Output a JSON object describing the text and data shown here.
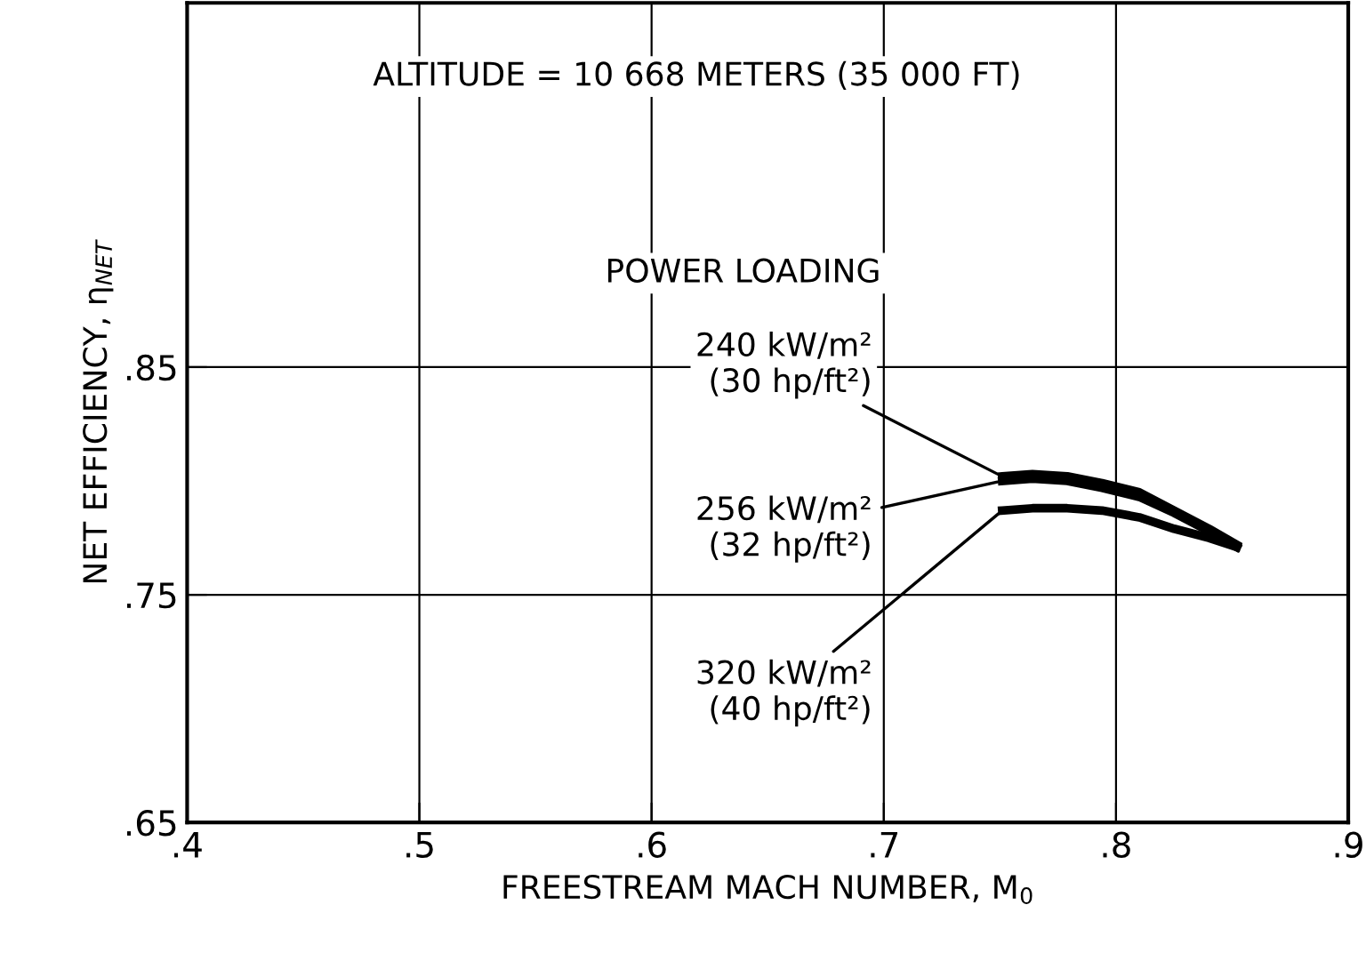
{
  "chart_data": {
    "type": "line",
    "xlabel": "FREESTREAM MACH NUMBER, M$_{0}$",
    "ylabel": "NET EFFICIENCY, η$_{NET}$",
    "annotations": [
      "ALTITUDE = 10 668 METERS (35 000 FT)",
      "POWER LOADING"
    ],
    "series": [
      {
        "name": "240 kW/m²\n(30 hp/ft²)",
        "color": "#000000",
        "x": [
          0.751,
          0.764,
          0.779,
          0.794,
          0.81,
          0.825,
          0.84,
          0.852
        ],
        "values": [
          0.802,
          0.803,
          0.802,
          0.799,
          0.795,
          0.787,
          0.779,
          0.772
        ]
      },
      {
        "name": "256 kW/m²\n(32 hp/ft²)",
        "color": "#000000",
        "x": [
          0.751,
          0.764,
          0.779,
          0.794,
          0.81,
          0.825,
          0.84,
          0.852
        ],
        "values": [
          0.8,
          0.801,
          0.8,
          0.797,
          0.793,
          0.786,
          0.778,
          0.771
        ]
      },
      {
        "name": "320 kW/m²\n(40 hp/ft²)",
        "color": "#000000",
        "x": [
          0.751,
          0.764,
          0.779,
          0.794,
          0.81,
          0.825,
          0.84,
          0.852
        ],
        "values": [
          0.787,
          0.788,
          0.788,
          0.787,
          0.784,
          0.779,
          0.775,
          0.771
        ]
      }
    ],
    "xlim": [
      0.4,
      0.9
    ],
    "xticks": [
      {
        "value": 0.4,
        "label": ".4"
      },
      {
        "value": 0.5,
        "label": ".5"
      },
      {
        "value": 0.6,
        "label": ".6"
      },
      {
        "value": 0.7,
        "label": ".7"
      },
      {
        "value": 0.8,
        "label": ".8"
      },
      {
        "value": 0.9,
        "label": ".9"
      }
    ],
    "ylim": [
      0.65,
      1.01
    ],
    "yticks": [
      {
        "value": 0.65,
        "label": ".65"
      },
      {
        "value": 0.75,
        "label": ".75"
      },
      {
        "value": 0.85,
        "label": ".85"
      }
    ],
    "grid": true,
    "line_style": "solid"
  }
}
